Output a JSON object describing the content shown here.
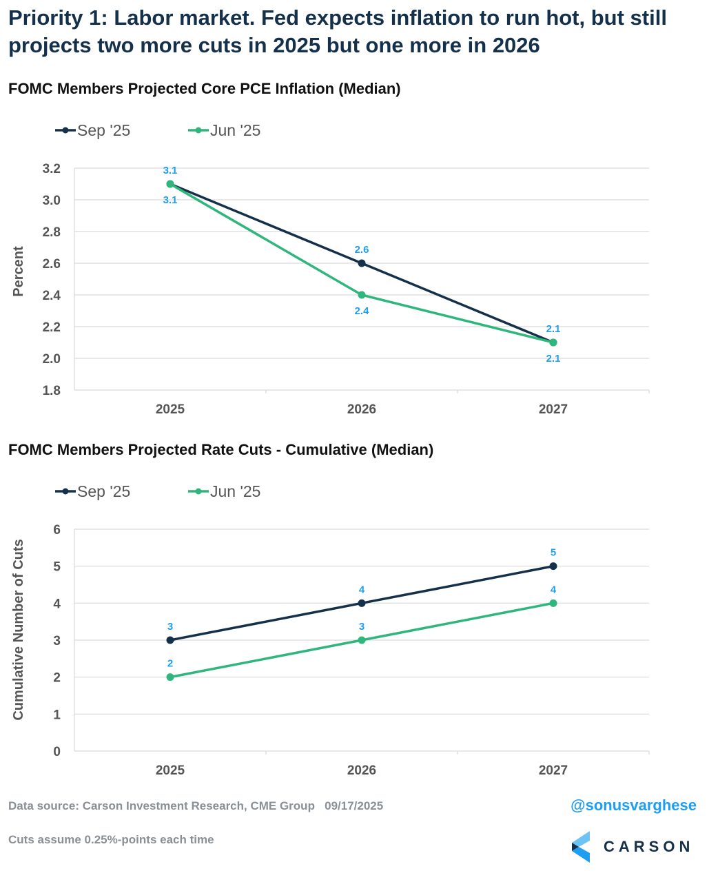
{
  "headline": "Priority 1: Labor market. Fed expects inflation to run hot, but still projects two more cuts in 2025 but one more in 2026",
  "colors": {
    "sep": "#14304a",
    "jun": "#2eb67d",
    "data_label": "#1e9ef0",
    "headline": "#14304a"
  },
  "chart_data": [
    {
      "type": "line",
      "title": "FOMC Members Projected Core PCE Inflation (Median)",
      "ylabel": "Percent",
      "xlabel": "",
      "categories": [
        "2025",
        "2026",
        "2027"
      ],
      "ylim": [
        1.8,
        3.2
      ],
      "yticks": [
        "1.8",
        "2.0",
        "2.2",
        "2.4",
        "2.6",
        "2.8",
        "3.0",
        "3.2"
      ],
      "grid": true,
      "legend": "top-left",
      "series": [
        {
          "name": "Sep '25",
          "values": [
            3.1,
            2.6,
            2.1
          ],
          "labels": [
            "3.1",
            "2.6",
            "2.1"
          ],
          "label_pos": "above"
        },
        {
          "name": "Jun '25",
          "values": [
            3.1,
            2.4,
            2.1
          ],
          "labels": [
            "3.1",
            "2.4",
            "2.1"
          ],
          "label_pos": "below"
        }
      ]
    },
    {
      "type": "line",
      "title": "FOMC Members Projected Rate Cuts - Cumulative (Median)",
      "ylabel": "Cumulative Number of Cuts",
      "xlabel": "",
      "categories": [
        "2025",
        "2026",
        "2027"
      ],
      "ylim": [
        0,
        6
      ],
      "yticks": [
        "0",
        "1",
        "2",
        "3",
        "4",
        "5",
        "6"
      ],
      "grid": true,
      "legend": "top-left",
      "series": [
        {
          "name": "Sep '25",
          "values": [
            3,
            4,
            5
          ],
          "labels": [
            "3",
            "4",
            "5"
          ],
          "label_pos": "above"
        },
        {
          "name": "Jun '25",
          "values": [
            2,
            3,
            4
          ],
          "labels": [
            "2",
            "3",
            "4"
          ],
          "label_pos": "above"
        }
      ]
    }
  ],
  "footer": {
    "source": "Data source: Carson Investment Research, CME Group   09/17/2025",
    "note": "Cuts assume 0.25%-points each time",
    "handle": "@sonusvarghese",
    "logo_text": "CARSON"
  }
}
